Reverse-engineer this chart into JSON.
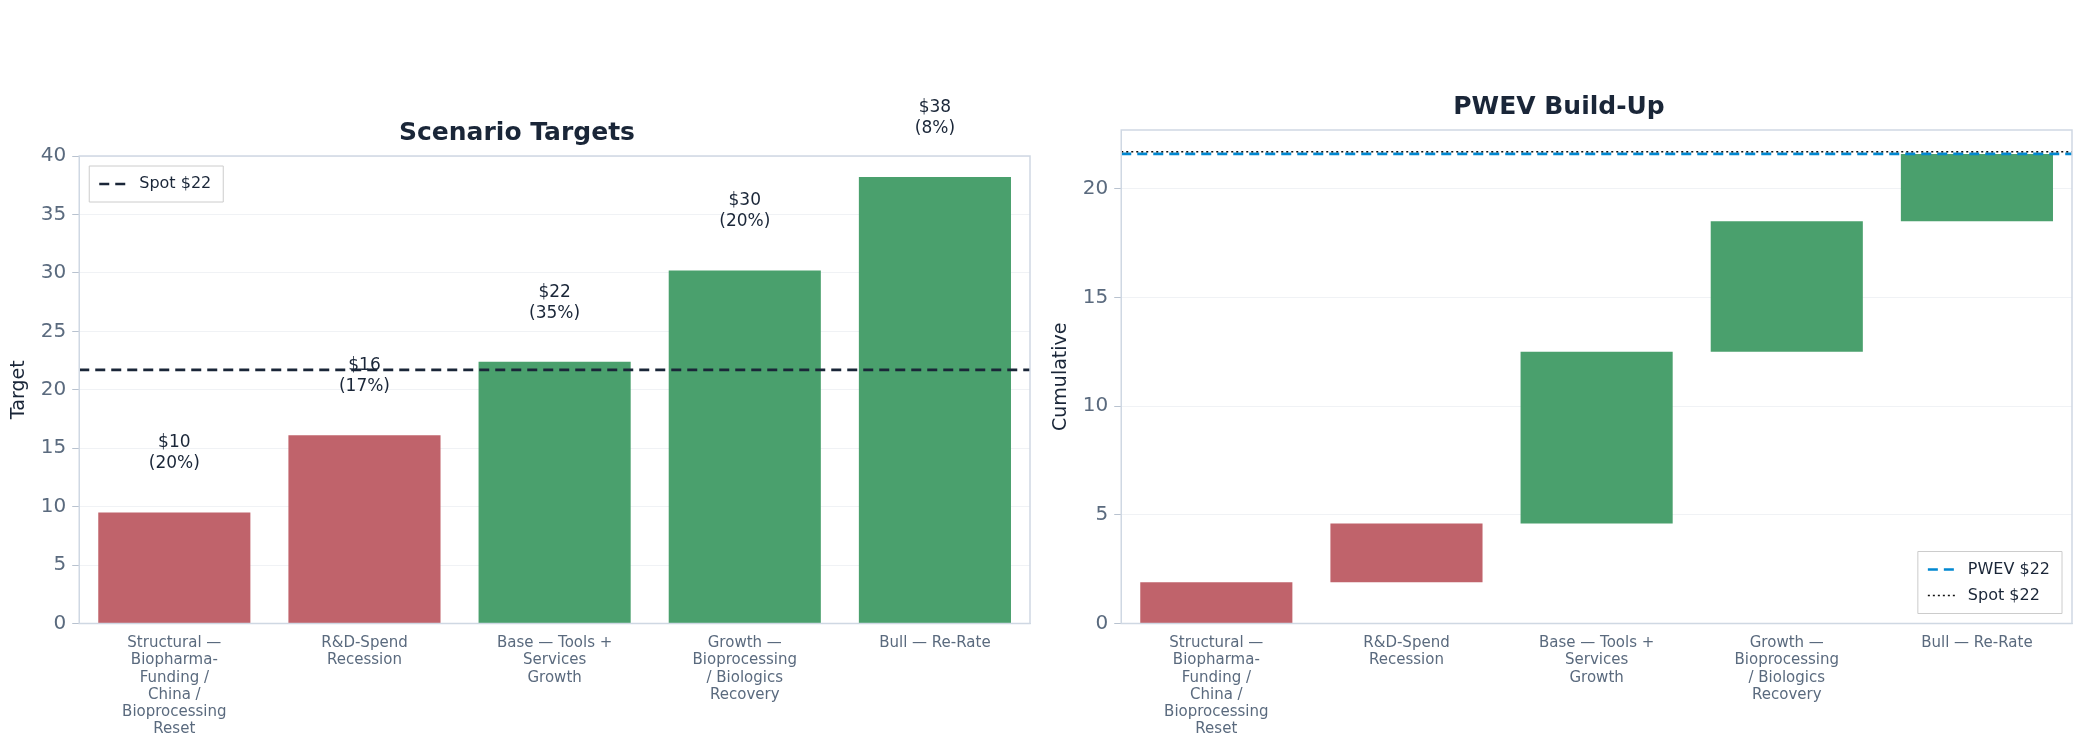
{
  "chart_data": [
    {
      "type": "bar",
      "title": "Scenario Targets",
      "ylabel": "Target",
      "categories": [
        "Structural — Biopharma-Funding / China / Bioprocessing Reset",
        "R&D-Spend Recession",
        "Base — Tools + Services Growth",
        "Growth — Bioprocessing / Biologics Recovery",
        "Bull — Re-Rate"
      ],
      "values": [
        9.5,
        16.1,
        22.4,
        30.2,
        38.2
      ],
      "colors": [
        "#c0636b",
        "#c0636b",
        "#4aa06d",
        "#4aa06d",
        "#4aa06d"
      ],
      "value_labels": [
        "$10 (20%)",
        "$16 (17%)",
        "$22 (35%)",
        "$30 (20%)",
        "$38 (8%)"
      ],
      "ylim": [
        0,
        40
      ],
      "yticks": [
        0,
        5,
        10,
        15,
        20,
        25,
        30,
        35,
        40
      ],
      "ref_lines": [
        {
          "axis": "y",
          "value": 21.7,
          "label": "Spot $22",
          "color": "#1a2638",
          "line_style": "dashed"
        }
      ],
      "grid": "y",
      "legend": "top left"
    },
    {
      "type": "bar",
      "title": "PWEV Build-Up",
      "ylabel": "Cumulative",
      "categories": [
        "Structural — Biopharma-Funding / China / Bioprocessing Reset",
        "R&D-Spend Recession",
        "Base — Tools + Services Growth",
        "Growth — Bioprocessing / Biologics Recovery",
        "Bull — Re-Rate"
      ],
      "base": [
        0,
        1.9,
        4.6,
        12.5,
        18.5
      ],
      "values": [
        1.9,
        2.7,
        7.9,
        6.0,
        3.1
      ],
      "colors": [
        "#c0636b",
        "#c0636b",
        "#4aa06d",
        "#4aa06d",
        "#4aa06d"
      ],
      "ylim": [
        0,
        22.7
      ],
      "yticks": [
        0,
        5,
        10,
        15,
        20
      ],
      "ref_lines": [
        {
          "axis": "y",
          "value": 21.6,
          "label": "PWEV $22",
          "color": "#0288d1",
          "line_style": "dashed"
        },
        {
          "axis": "y",
          "value": 21.7,
          "label": "Spot $22",
          "color": "#111111",
          "line_style": "dotted"
        }
      ],
      "grid": "y",
      "legend": "bottom right"
    }
  ]
}
